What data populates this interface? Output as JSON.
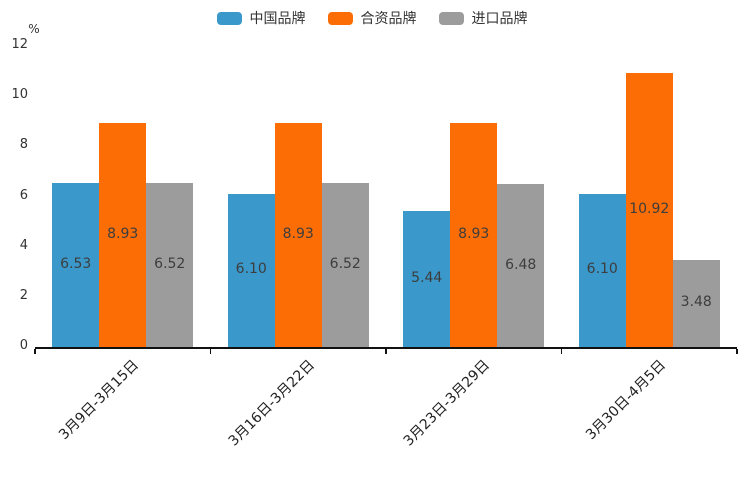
{
  "chart_data": {
    "type": "bar",
    "title": "",
    "unit_label": "%",
    "categories": [
      "3月9日-3月15日",
      "3月16日-3月22日",
      "3月23日-3月29日",
      "3月30日-4月5日"
    ],
    "series": [
      {
        "name": "中国品牌",
        "color": "#3A98CB",
        "values": [
          6.53,
          6.1,
          5.44,
          6.1
        ]
      },
      {
        "name": "合资品牌",
        "color": "#FC6E05",
        "values": [
          8.93,
          8.93,
          8.93,
          10.92
        ]
      },
      {
        "name": "进口品牌",
        "color": "#9C9C9C",
        "values": [
          6.52,
          6.52,
          6.48,
          3.48
        ]
      }
    ],
    "ylim": [
      0,
      12
    ],
    "yticks": [
      0,
      2,
      4,
      6,
      8,
      10,
      12
    ],
    "grid": false,
    "legend_position": "top-center",
    "bar_label_position": "inside-center",
    "x_label_rotation": -45,
    "axis_color": "#111111",
    "tick_label_color": "#333333",
    "x_label_color": "#222222",
    "value_label_color": "#3D3D3D",
    "background": "#FFFFFF"
  }
}
